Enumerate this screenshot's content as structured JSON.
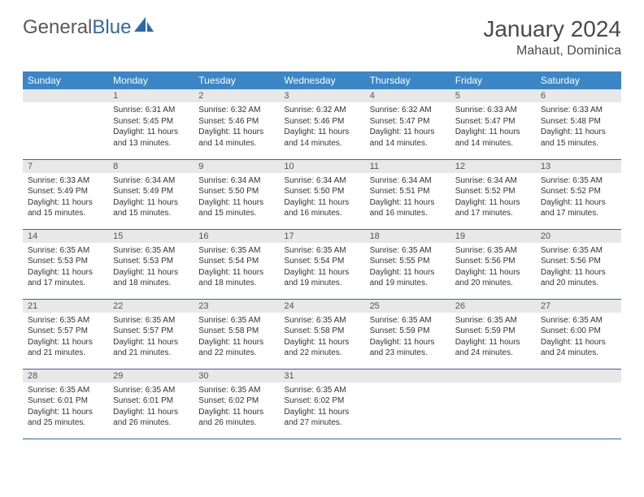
{
  "logo": {
    "text1": "General",
    "text2": "Blue"
  },
  "title": "January 2024",
  "location": "Mahaut, Dominica",
  "colors": {
    "header_bg": "#3b86c6",
    "header_fg": "#ffffff",
    "daynum_bg": "#e8e8e8",
    "row_border": "#2d6aa8",
    "text": "#333333",
    "logo_gray": "#5a5a5a",
    "logo_blue": "#2d6aa8"
  },
  "weekdays": [
    "Sunday",
    "Monday",
    "Tuesday",
    "Wednesday",
    "Thursday",
    "Friday",
    "Saturday"
  ],
  "weeks": [
    [
      null,
      {
        "n": "1",
        "sr": "6:31 AM",
        "ss": "5:45 PM",
        "dl": "11 hours and 13 minutes."
      },
      {
        "n": "2",
        "sr": "6:32 AM",
        "ss": "5:46 PM",
        "dl": "11 hours and 14 minutes."
      },
      {
        "n": "3",
        "sr": "6:32 AM",
        "ss": "5:46 PM",
        "dl": "11 hours and 14 minutes."
      },
      {
        "n": "4",
        "sr": "6:32 AM",
        "ss": "5:47 PM",
        "dl": "11 hours and 14 minutes."
      },
      {
        "n": "5",
        "sr": "6:33 AM",
        "ss": "5:47 PM",
        "dl": "11 hours and 14 minutes."
      },
      {
        "n": "6",
        "sr": "6:33 AM",
        "ss": "5:48 PM",
        "dl": "11 hours and 15 minutes."
      }
    ],
    [
      {
        "n": "7",
        "sr": "6:33 AM",
        "ss": "5:49 PM",
        "dl": "11 hours and 15 minutes."
      },
      {
        "n": "8",
        "sr": "6:34 AM",
        "ss": "5:49 PM",
        "dl": "11 hours and 15 minutes."
      },
      {
        "n": "9",
        "sr": "6:34 AM",
        "ss": "5:50 PM",
        "dl": "11 hours and 15 minutes."
      },
      {
        "n": "10",
        "sr": "6:34 AM",
        "ss": "5:50 PM",
        "dl": "11 hours and 16 minutes."
      },
      {
        "n": "11",
        "sr": "6:34 AM",
        "ss": "5:51 PM",
        "dl": "11 hours and 16 minutes."
      },
      {
        "n": "12",
        "sr": "6:34 AM",
        "ss": "5:52 PM",
        "dl": "11 hours and 17 minutes."
      },
      {
        "n": "13",
        "sr": "6:35 AM",
        "ss": "5:52 PM",
        "dl": "11 hours and 17 minutes."
      }
    ],
    [
      {
        "n": "14",
        "sr": "6:35 AM",
        "ss": "5:53 PM",
        "dl": "11 hours and 17 minutes."
      },
      {
        "n": "15",
        "sr": "6:35 AM",
        "ss": "5:53 PM",
        "dl": "11 hours and 18 minutes."
      },
      {
        "n": "16",
        "sr": "6:35 AM",
        "ss": "5:54 PM",
        "dl": "11 hours and 18 minutes."
      },
      {
        "n": "17",
        "sr": "6:35 AM",
        "ss": "5:54 PM",
        "dl": "11 hours and 19 minutes."
      },
      {
        "n": "18",
        "sr": "6:35 AM",
        "ss": "5:55 PM",
        "dl": "11 hours and 19 minutes."
      },
      {
        "n": "19",
        "sr": "6:35 AM",
        "ss": "5:56 PM",
        "dl": "11 hours and 20 minutes."
      },
      {
        "n": "20",
        "sr": "6:35 AM",
        "ss": "5:56 PM",
        "dl": "11 hours and 20 minutes."
      }
    ],
    [
      {
        "n": "21",
        "sr": "6:35 AM",
        "ss": "5:57 PM",
        "dl": "11 hours and 21 minutes."
      },
      {
        "n": "22",
        "sr": "6:35 AM",
        "ss": "5:57 PM",
        "dl": "11 hours and 21 minutes."
      },
      {
        "n": "23",
        "sr": "6:35 AM",
        "ss": "5:58 PM",
        "dl": "11 hours and 22 minutes."
      },
      {
        "n": "24",
        "sr": "6:35 AM",
        "ss": "5:58 PM",
        "dl": "11 hours and 22 minutes."
      },
      {
        "n": "25",
        "sr": "6:35 AM",
        "ss": "5:59 PM",
        "dl": "11 hours and 23 minutes."
      },
      {
        "n": "26",
        "sr": "6:35 AM",
        "ss": "5:59 PM",
        "dl": "11 hours and 24 minutes."
      },
      {
        "n": "27",
        "sr": "6:35 AM",
        "ss": "6:00 PM",
        "dl": "11 hours and 24 minutes."
      }
    ],
    [
      {
        "n": "28",
        "sr": "6:35 AM",
        "ss": "6:01 PM",
        "dl": "11 hours and 25 minutes."
      },
      {
        "n": "29",
        "sr": "6:35 AM",
        "ss": "6:01 PM",
        "dl": "11 hours and 26 minutes."
      },
      {
        "n": "30",
        "sr": "6:35 AM",
        "ss": "6:02 PM",
        "dl": "11 hours and 26 minutes."
      },
      {
        "n": "31",
        "sr": "6:35 AM",
        "ss": "6:02 PM",
        "dl": "11 hours and 27 minutes."
      },
      null,
      null,
      null
    ]
  ],
  "labels": {
    "sunrise": "Sunrise:",
    "sunset": "Sunset:",
    "daylight": "Daylight:"
  }
}
